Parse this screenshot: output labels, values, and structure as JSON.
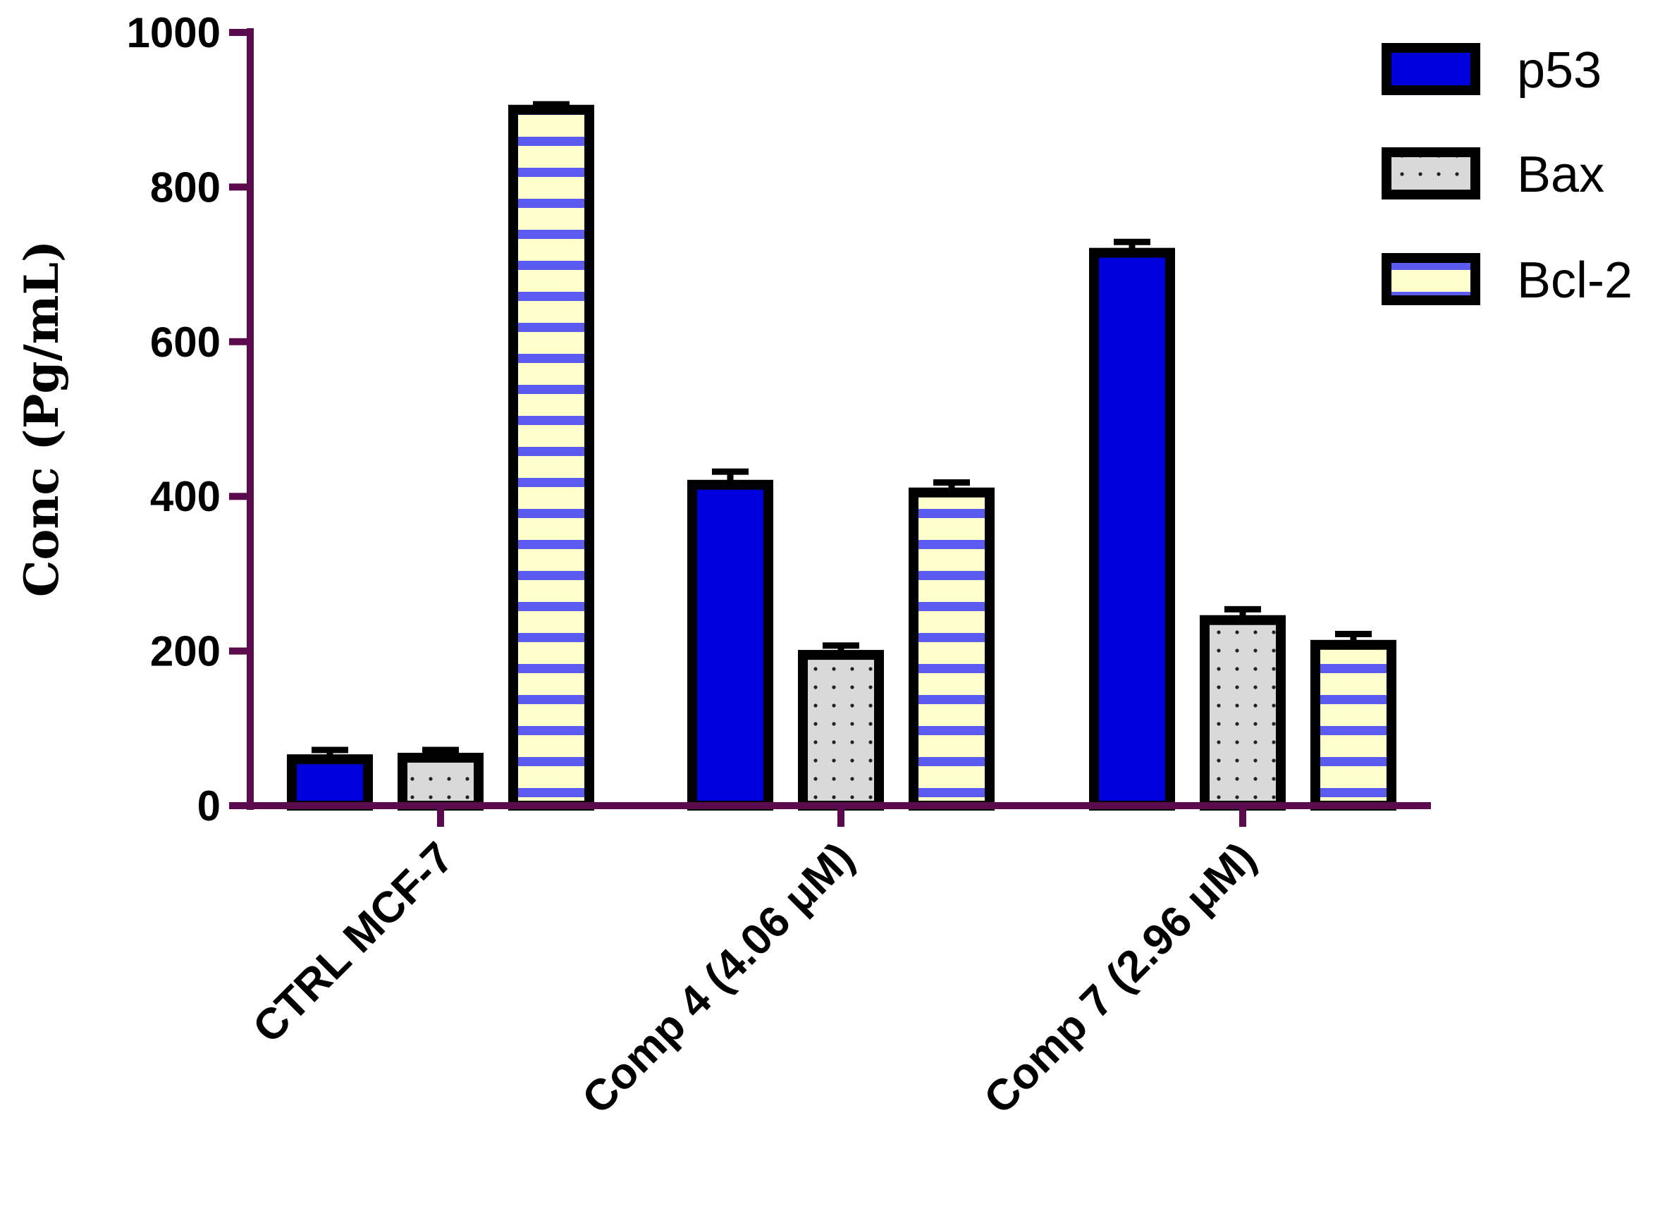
{
  "chart_data": {
    "type": "bar",
    "title": "",
    "xlabel": "",
    "ylabel": "Conc (Pg/mL)",
    "ylim": [
      0,
      1000
    ],
    "yticks": [
      "0",
      "200",
      "400",
      "600",
      "800",
      "1000"
    ],
    "categories": [
      "CTRL MCF-7",
      "Comp 4 (4.06 μM)",
      "Comp 7 (2.96 μM)"
    ],
    "series": [
      {
        "name": "p53",
        "values": [
          60,
          415,
          715
        ],
        "errors": [
          12,
          17,
          14
        ],
        "pattern": "solid"
      },
      {
        "name": "Bax",
        "values": [
          62,
          195,
          240
        ],
        "errors": [
          10,
          12,
          14
        ],
        "pattern": "dots"
      },
      {
        "name": "Bcl-2",
        "values": [
          900,
          405,
          208
        ],
        "errors": [
          7,
          13,
          14
        ],
        "pattern": "stripes"
      }
    ],
    "legend_position": "top-right",
    "grid": false,
    "colors": {
      "axis": "#5c0a4e",
      "p53_fill": "#0000dc",
      "bax_fill": "#d9d9d9",
      "bcl2_fill": "#ffffcc",
      "bcl2_stripe": "#5b5bf2",
      "outline": "#000000"
    }
  }
}
